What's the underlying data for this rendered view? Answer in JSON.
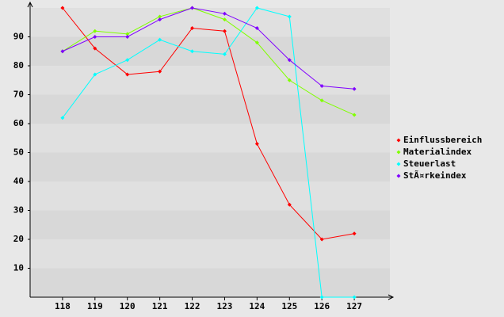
{
  "chart_data": {
    "type": "line",
    "x": [
      118,
      119,
      120,
      121,
      122,
      123,
      124,
      125,
      126,
      127
    ],
    "xlim": [
      117,
      128
    ],
    "xticks": [
      118,
      119,
      120,
      121,
      122,
      123,
      124,
      125,
      126,
      127
    ],
    "ylim": [
      0,
      100
    ],
    "yticks": [
      10,
      20,
      30,
      40,
      50,
      60,
      70,
      80,
      90
    ],
    "grid": true,
    "legend": "right",
    "series": [
      {
        "name": "Einflussbereich",
        "color": "#ff0000",
        "values": [
          100,
          86,
          77,
          78,
          93,
          92,
          53,
          32,
          20,
          22
        ]
      },
      {
        "name": "Materialindex",
        "color": "#80ff00",
        "values": [
          85,
          92,
          91,
          97,
          100,
          96,
          88,
          75,
          68,
          63
        ]
      },
      {
        "name": "Steuerlast",
        "color": "#00ffff",
        "values": [
          62,
          77,
          82,
          89,
          85,
          84,
          100,
          97,
          0,
          0
        ]
      },
      {
        "name": "StÃ¤rkeindex",
        "color": "#8000ff",
        "values": [
          85,
          90,
          90,
          96,
          100,
          98,
          93,
          82,
          73,
          72
        ]
      }
    ]
  }
}
